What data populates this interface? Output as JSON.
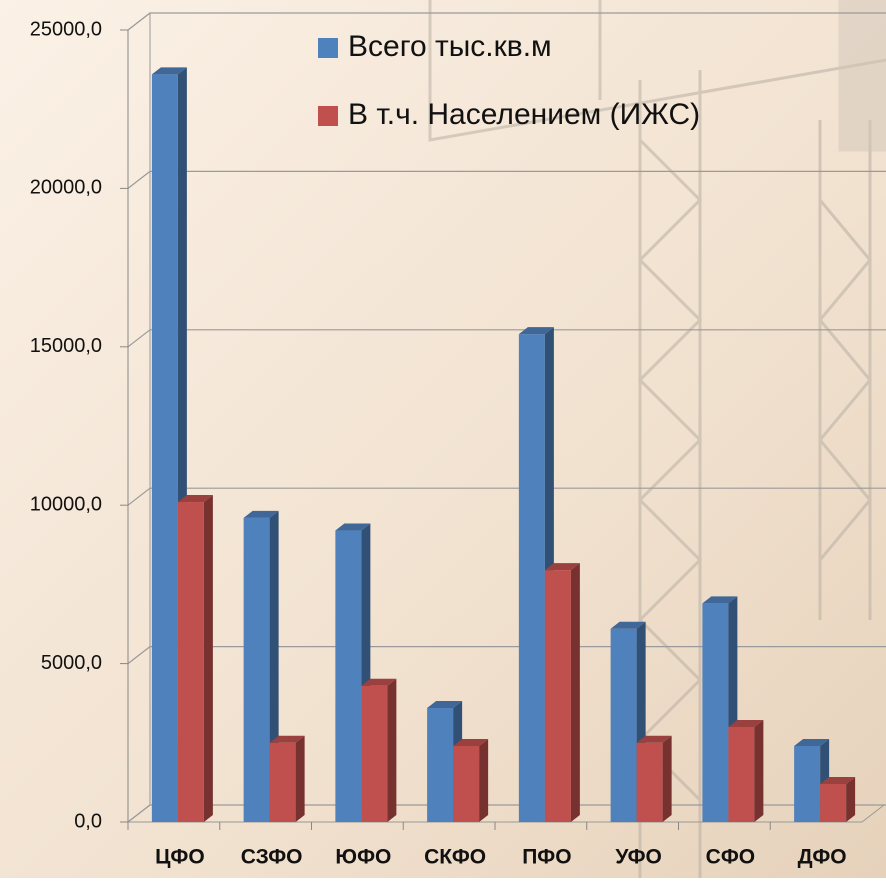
{
  "chart_data": {
    "type": "bar3d",
    "categories": [
      "ЦФО",
      "СЗФО",
      "ЮФО",
      "СКФО",
      "ПФО",
      "УФО",
      "СФО",
      "ДФО"
    ],
    "series": [
      {
        "name": "Всего тыс.кв.м",
        "color": "#4f81bd",
        "values": [
          23600,
          9600,
          9200,
          3600,
          15400,
          6100,
          6900,
          2400
        ]
      },
      {
        "name": "В т.ч. Населением (ИЖС)",
        "color": "#c0504d",
        "values": [
          10100,
          2500,
          4300,
          2400,
          7950,
          2500,
          3000,
          1200
        ]
      }
    ],
    "ylim": [
      0,
      25000
    ],
    "yticks": [
      {
        "value": 0,
        "label": "0,0"
      },
      {
        "value": 5000,
        "label": "5000,0"
      },
      {
        "value": 10000,
        "label": "10000,0"
      },
      {
        "value": 15000,
        "label": "15000,0"
      },
      {
        "value": 20000,
        "label": "20000,0"
      },
      {
        "value": 25000,
        "label": "25000,0"
      }
    ],
    "grid": true,
    "legend": "top-right"
  }
}
